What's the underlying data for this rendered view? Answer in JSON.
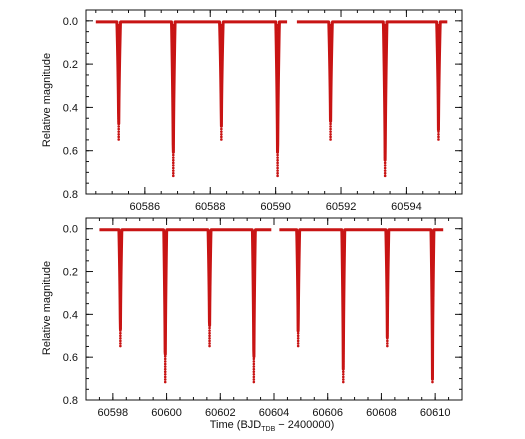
{
  "chart_data": [
    {
      "type": "line",
      "series": [
        {
          "color": "#c81414",
          "x": [
            60584.5,
            60585.15,
            60585.2,
            60585.35,
            60585.5,
            60585.55,
            60586.7,
            60586.85,
            60586.87,
            60587.0,
            60587.05,
            60588.2,
            60588.3,
            60588.34,
            60588.45,
            60588.5,
            60589.95,
            60590.02,
            60590.06,
            60590.18,
            60590.3,
            60590.7,
            60590.85,
            60591.55,
            60591.63,
            60591.68,
            60591.8,
            60591.9,
            60593.2,
            60593.32,
            60593.35,
            60593.48,
            60593.55,
            60594.85,
            60594.95,
            60594.98,
            60595.1,
            60595.25
          ],
          "y": [
            0.0,
            0.01,
            0.55,
            0.01,
            0.0,
            0.0,
            0.01,
            0.72,
            0.01,
            0.0,
            0.0,
            0.01,
            0.55,
            0.01,
            0.0,
            0.0,
            0.01,
            0.72,
            0.01,
            0.0,
            0.0,
            0.0,
            0.0,
            0.01,
            0.55,
            0.01,
            0.0,
            0.0,
            0.01,
            0.72,
            0.01,
            0.0,
            0.0,
            0.01,
            0.55,
            0.01,
            0.0,
            0.0
          ]
        }
      ],
      "dips": [
        {
          "x": 60585.2,
          "depth": 0.55
        },
        {
          "x": 60586.87,
          "depth": 0.72
        },
        {
          "x": 60588.34,
          "depth": 0.55
        },
        {
          "x": 60590.06,
          "depth": 0.72
        },
        {
          "x": 60591.68,
          "depth": 0.55
        },
        {
          "x": 60593.35,
          "depth": 0.72
        },
        {
          "x": 60594.98,
          "depth": 0.55
        }
      ],
      "segments": [
        [
          60584.5,
          60590.35
        ],
        [
          60590.65,
          60595.25
        ]
      ],
      "xlim": [
        60584.2,
        60595.7
      ],
      "ylim": [
        0.8,
        -0.05
      ],
      "xticks": [
        60586,
        60588,
        60590,
        60592,
        60594
      ],
      "yticks": [
        0.0,
        0.2,
        0.4,
        0.6,
        0.8
      ],
      "ylabel": "Relative magnitude",
      "xlabel": ""
    },
    {
      "type": "line",
      "dips": [
        {
          "x": 60598.28,
          "depth": 0.55
        },
        {
          "x": 60599.95,
          "depth": 0.72
        },
        {
          "x": 60601.6,
          "depth": 0.55
        },
        {
          "x": 60603.25,
          "depth": 0.72
        },
        {
          "x": 60604.9,
          "depth": 0.55
        },
        {
          "x": 60606.58,
          "depth": 0.72
        },
        {
          "x": 60608.22,
          "depth": 0.55
        },
        {
          "x": 60609.9,
          "depth": 0.72
        }
      ],
      "segments": [
        [
          60597.5,
          60603.9
        ],
        [
          60604.2,
          60610.3
        ]
      ],
      "xlim": [
        60597.0,
        60611.0
      ],
      "ylim": [
        0.8,
        -0.05
      ],
      "xticks": [
        60598,
        60600,
        60602,
        60604,
        60606,
        60608,
        60610
      ],
      "yticks": [
        0.0,
        0.2,
        0.4,
        0.6,
        0.8
      ],
      "ylabel": "Relative magnitude",
      "xlabel": "Time   (BJD",
      "xlabel_sub": "TDB",
      "xlabel_tail": " − 2400000)",
      "series": [
        {
          "color": "#c81414"
        }
      ]
    }
  ]
}
